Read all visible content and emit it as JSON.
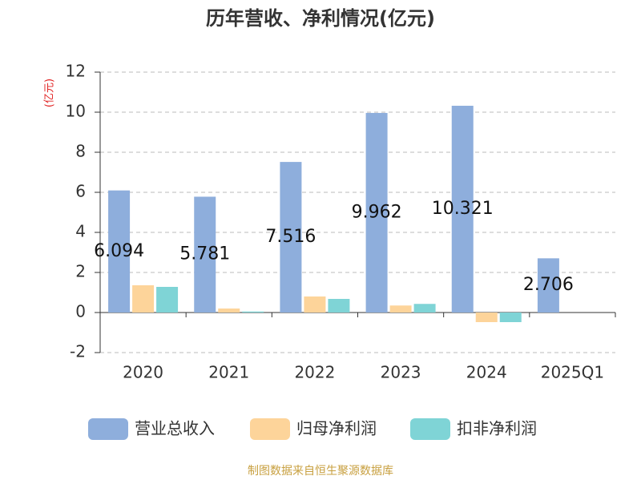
{
  "chart_data": {
    "type": "bar",
    "title": "历年营收、净利情况(亿元)",
    "y_label": "(亿元)",
    "source": "制图数据来自恒生聚源数据库",
    "categories": [
      "2020",
      "2021",
      "2022",
      "2023",
      "2024",
      "2025Q1"
    ],
    "series": [
      {
        "name": "营业总收入",
        "color": "#8eaedc",
        "values": [
          6.094,
          5.781,
          7.516,
          9.962,
          10.321,
          2.706
        ],
        "show_labels": true
      },
      {
        "name": "归母净利润",
        "color": "#fdd49a",
        "values": [
          1.36,
          0.2,
          0.8,
          0.35,
          -0.48,
          null
        ]
      },
      {
        "name": "扣非净利润",
        "color": "#7fd4d6",
        "values": [
          1.28,
          0.05,
          0.68,
          0.43,
          -0.48,
          null
        ]
      }
    ],
    "ylim": [
      -2,
      12
    ],
    "yticks": [
      -2,
      0,
      2,
      4,
      6,
      8,
      10,
      12
    ],
    "grid": true
  }
}
